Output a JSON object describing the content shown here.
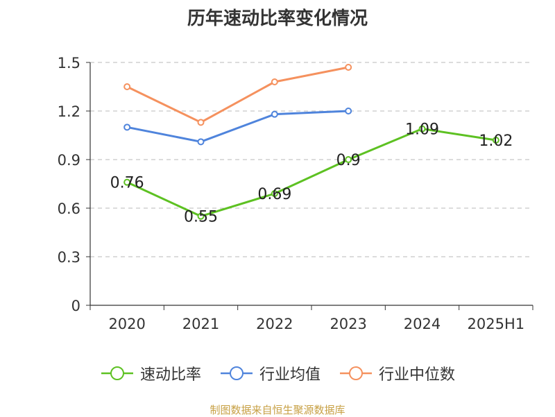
{
  "chart_data": {
    "type": "line",
    "title": "历年速动比率变化情况",
    "categories": [
      "2020",
      "2021",
      "2022",
      "2023",
      "2024",
      "2025H1"
    ],
    "ylim": [
      0,
      1.5
    ],
    "yticks": [
      "0",
      "0.3",
      "0.6",
      "0.9",
      "1.2",
      "1.5"
    ],
    "ytick_values": [
      0,
      0.3,
      0.6,
      0.9,
      1.2,
      1.5
    ],
    "grid": true,
    "legend_position": "bottom",
    "series": [
      {
        "name": "速动比率",
        "color": "#5dc122",
        "values": [
          0.76,
          0.55,
          0.69,
          0.9,
          1.09,
          1.02
        ],
        "labels": [
          "0.76",
          "0.55",
          "0.69",
          "0.9",
          "1.09",
          "1.02"
        ],
        "show_labels": true
      },
      {
        "name": "行业均值",
        "color": "#4f84dc",
        "values": [
          1.1,
          1.01,
          1.18,
          1.2,
          null,
          null
        ],
        "show_labels": false
      },
      {
        "name": "行业中位数",
        "color": "#f5915e",
        "values": [
          1.35,
          1.13,
          1.38,
          1.47,
          null,
          null
        ],
        "show_labels": false
      }
    ]
  },
  "footer": {
    "source_text": "制图数据来自恒生聚源数据库",
    "source_color": "#c7a044"
  }
}
